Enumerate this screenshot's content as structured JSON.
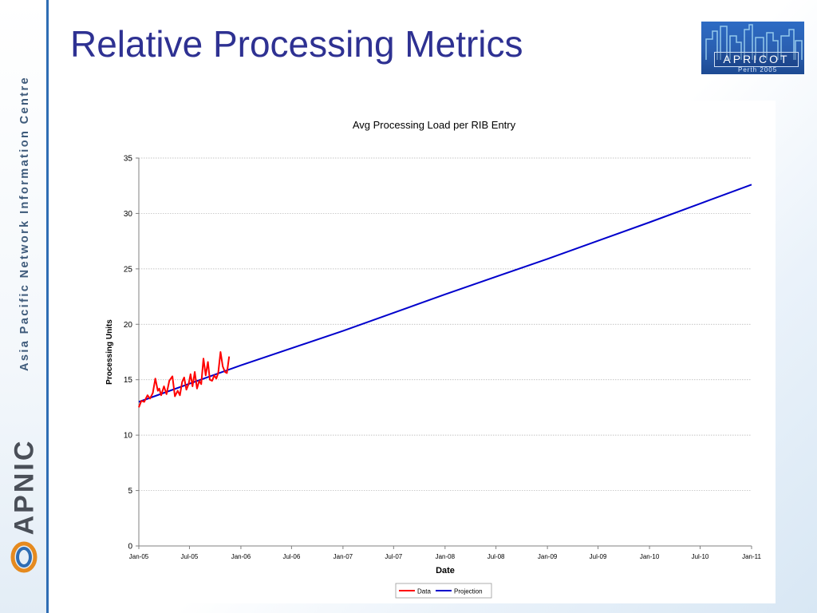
{
  "slide": {
    "title": "Relative Processing Metrics",
    "sidebar_org_text": "Asia Pacific Network Information Centre",
    "sidebar_brand": "APNIC",
    "logo_word": "APRICOT",
    "logo_sub": "Perth 2005",
    "colors": {
      "title": "#2e3192",
      "rule": "#2e6db4"
    }
  },
  "chart_data": {
    "type": "line",
    "title": "Avg Processing Load per RIB Entry",
    "xlabel": "Date",
    "ylabel": "Processing Units",
    "ylim": [
      0,
      35
    ],
    "yticks": [
      0,
      5,
      10,
      15,
      20,
      25,
      30,
      35
    ],
    "xlim": [
      "2005-01-01",
      "2011-01-01"
    ],
    "xticks": [
      "Jan-05",
      "Jul-05",
      "Jan-06",
      "Jul-06",
      "Jan-07",
      "Jul-07",
      "Jan-08",
      "Jul-08",
      "Jan-09",
      "Jul-09",
      "Jan-10",
      "Jul-10",
      "Jan-11"
    ],
    "grid": true,
    "legend": "bottom-center",
    "series": [
      {
        "name": "Data",
        "color": "#ff0000",
        "x": [
          "2005-01-01",
          "2005-01-10",
          "2005-01-20",
          "2005-02-01",
          "2005-02-10",
          "2005-02-20",
          "2005-03-01",
          "2005-03-10",
          "2005-03-15",
          "2005-03-22",
          "2005-04-01",
          "2005-04-10",
          "2005-04-20",
          "2005-05-01",
          "2005-05-10",
          "2005-05-20",
          "2005-05-28",
          "2005-06-05",
          "2005-06-12",
          "2005-06-20",
          "2005-06-28",
          "2005-07-05",
          "2005-07-12",
          "2005-07-20",
          "2005-07-28",
          "2005-08-05",
          "2005-08-12",
          "2005-08-20",
          "2005-08-28",
          "2005-09-05",
          "2005-09-12",
          "2005-09-20",
          "2005-09-28",
          "2005-10-05",
          "2005-10-12",
          "2005-10-20",
          "2005-10-28",
          "2005-11-05",
          "2005-11-12",
          "2005-11-20"
        ],
        "y": [
          12.5,
          13.1,
          13.0,
          13.6,
          13.3,
          13.8,
          15.1,
          14.0,
          14.2,
          13.6,
          14.4,
          13.7,
          14.9,
          15.3,
          13.5,
          14.0,
          13.6,
          14.8,
          15.2,
          14.1,
          14.6,
          15.5,
          14.4,
          15.7,
          14.2,
          14.9,
          14.6,
          16.9,
          15.4,
          16.6,
          15.0,
          14.9,
          15.4,
          15.1,
          15.6,
          17.5,
          16.2,
          15.7,
          15.6,
          17.1
        ]
      },
      {
        "name": "Projection",
        "color": "#0000cc",
        "x": [
          "2005-01-01",
          "2006-01-01",
          "2007-01-01",
          "2008-01-01",
          "2009-01-01",
          "2010-01-01",
          "2011-01-01"
        ],
        "y": [
          13.0,
          16.3,
          19.4,
          22.7,
          25.9,
          29.2,
          32.6
        ]
      }
    ]
  }
}
